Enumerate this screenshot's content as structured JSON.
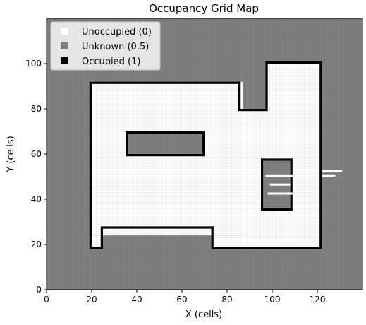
{
  "chart_data": {
    "type": "heatmap",
    "title": "Occupancy Grid Map",
    "xlabel": "X (cells)",
    "ylabel": "Y (cells)",
    "xlim": [
      0,
      140
    ],
    "ylim": [
      0,
      120
    ],
    "xticks": [
      0,
      20,
      40,
      60,
      80,
      100,
      120
    ],
    "yticks": [
      0,
      20,
      40,
      60,
      80,
      100
    ],
    "grid": true,
    "legend_position": "upper-left",
    "colors": {
      "unoccupied": "#ffffff",
      "unknown": "#808080",
      "occupied": "#000000"
    },
    "legend": [
      {
        "label": "Unoccupied (0)",
        "value": 0,
        "color": "#ffffff"
      },
      {
        "label": "Unknown (0.5)",
        "value": 0.5,
        "color": "#808080"
      },
      {
        "label": "Occupied (1)",
        "value": 1,
        "color": "#000000"
      }
    ],
    "background_value": 0.5,
    "free_regions": [
      {
        "x": [
          20,
          87
        ],
        "y": [
          24,
          92
        ]
      },
      {
        "x": [
          87,
          122
        ],
        "y": [
          19,
          80
        ]
      },
      {
        "x": [
          98,
          122
        ],
        "y": [
          80,
          100
        ]
      },
      {
        "x": [
          73,
          87
        ],
        "y": [
          19,
          24
        ]
      },
      {
        "x": [
          20,
          25
        ],
        "y": [
          19,
          24
        ]
      }
    ],
    "unknown_regions": [
      {
        "x": [
          36,
          69
        ],
        "y": [
          60,
          69
        ]
      },
      {
        "x": [
          96,
          108
        ],
        "y": [
          36,
          57
        ]
      }
    ],
    "walls": [
      {
        "x": [
          19,
          20
        ],
        "y": [
          19,
          92
        ]
      },
      {
        "x": [
          19,
          86
        ],
        "y": [
          91,
          92
        ]
      },
      {
        "x": [
          85,
          86
        ],
        "y": [
          80,
          92
        ]
      },
      {
        "x": [
          85,
          98
        ],
        "y": [
          79,
          80
        ]
      },
      {
        "x": [
          97,
          98
        ],
        "y": [
          80,
          101
        ]
      },
      {
        "x": [
          97,
          122
        ],
        "y": [
          100,
          101
        ]
      },
      {
        "x": [
          121,
          122
        ],
        "y": [
          18,
          101
        ]
      },
      {
        "x": [
          73,
          122
        ],
        "y": [
          18,
          19
        ]
      },
      {
        "x": [
          73,
          74
        ],
        "y": [
          18,
          28
        ]
      },
      {
        "x": [
          25,
          74
        ],
        "y": [
          27,
          28
        ]
      },
      {
        "x": [
          24,
          25
        ],
        "y": [
          19,
          28
        ]
      },
      {
        "x": [
          19,
          25
        ],
        "y": [
          18,
          19
        ]
      },
      {
        "x": [
          35,
          70
        ],
        "y": [
          69,
          70
        ]
      },
      {
        "x": [
          35,
          70
        ],
        "y": [
          59,
          60
        ]
      },
      {
        "x": [
          35,
          36
        ],
        "y": [
          59,
          70
        ]
      },
      {
        "x": [
          69,
          70
        ],
        "y": [
          59,
          70
        ]
      },
      {
        "x": [
          95,
          109
        ],
        "y": [
          57,
          58
        ]
      },
      {
        "x": [
          95,
          109
        ],
        "y": [
          35,
          36
        ]
      },
      {
        "x": [
          95,
          96
        ],
        "y": [
          35,
          58
        ]
      },
      {
        "x": [
          108,
          109
        ],
        "y": [
          35,
          58
        ]
      }
    ],
    "free_streaks": [
      {
        "x": [
          97,
          111
        ],
        "y": [
          50,
          51
        ]
      },
      {
        "x": [
          99,
          108
        ],
        "y": [
          46,
          47
        ]
      },
      {
        "x": [
          98,
          109
        ],
        "y": [
          42,
          43
        ]
      },
      {
        "x": [
          122,
          131
        ],
        "y": [
          52,
          53
        ]
      },
      {
        "x": [
          122,
          128
        ],
        "y": [
          50,
          51
        ]
      }
    ]
  }
}
